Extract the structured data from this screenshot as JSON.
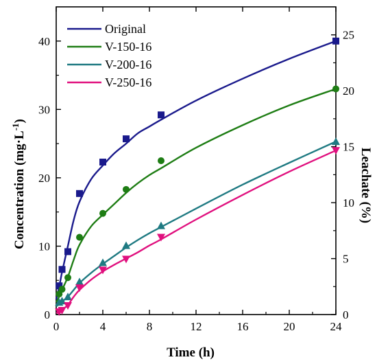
{
  "chart_data": {
    "type": "line",
    "xlabel": "Time (h)",
    "ylabel": "Concentration (mg·L",
    "ylabel_sup": "-1",
    "ylabel_tail": ")",
    "y2label": "Leachate (%)",
    "xlim": [
      0,
      24
    ],
    "ylim": [
      0,
      45
    ],
    "y2lim": [
      0,
      27.5
    ],
    "x_ticks": [
      0,
      4,
      8,
      12,
      16,
      20,
      24
    ],
    "x_tick_labels": [
      "0",
      "4",
      "8",
      "12",
      "16",
      "20",
      "24"
    ],
    "y_ticks": [
      0,
      10,
      20,
      30,
      40
    ],
    "y_tick_labels": [
      "0",
      "10",
      "20",
      "30",
      "40"
    ],
    "y2_ticks": [
      0,
      5,
      10,
      15,
      20,
      25
    ],
    "y2_tick_labels": [
      "0",
      "5",
      "10",
      "15",
      "20",
      "25"
    ],
    "grid": false,
    "legend_position": "top-left",
    "series": [
      {
        "name": "Original",
        "color": "#1a1a8c",
        "marker": "square",
        "x": [
          0.25,
          0.5,
          1,
          2,
          4,
          6,
          9,
          24
        ],
        "y": [
          4.2,
          6.6,
          9.2,
          17.7,
          22.3,
          25.7,
          29.2,
          40.0
        ],
        "fit": [
          [
            0,
            2.2
          ],
          [
            0.25,
            4.0
          ],
          [
            0.5,
            6.2
          ],
          [
            1,
            10.0
          ],
          [
            1.5,
            13.8
          ],
          [
            2,
            16.5
          ],
          [
            3,
            19.8
          ],
          [
            4,
            21.8
          ],
          [
            5,
            23.6
          ],
          [
            6,
            25.0
          ],
          [
            7,
            26.5
          ],
          [
            8,
            27.5
          ],
          [
            9,
            28.5
          ],
          [
            12,
            31.3
          ],
          [
            16,
            34.5
          ],
          [
            20,
            37.4
          ],
          [
            24,
            40.0
          ]
        ]
      },
      {
        "name": "V-150-16",
        "color": "#1e7d14",
        "marker": "circle",
        "x": [
          0.25,
          0.5,
          1,
          2,
          4,
          6,
          9,
          24
        ],
        "y": [
          3.0,
          3.7,
          5.4,
          11.3,
          14.8,
          18.3,
          22.5,
          33.0
        ],
        "fit": [
          [
            0,
            1.8
          ],
          [
            0.25,
            2.6
          ],
          [
            0.5,
            3.6
          ],
          [
            1,
            5.5
          ],
          [
            1.5,
            8.0
          ],
          [
            2,
            10.2
          ],
          [
            3,
            12.9
          ],
          [
            4,
            14.6
          ],
          [
            5,
            16.2
          ],
          [
            6,
            17.8
          ],
          [
            7,
            19.2
          ],
          [
            8,
            20.4
          ],
          [
            9,
            21.4
          ],
          [
            12,
            24.4
          ],
          [
            16,
            27.7
          ],
          [
            20,
            30.6
          ],
          [
            24,
            33.0
          ]
        ]
      },
      {
        "name": "V-200-16",
        "color": "#1f7a82",
        "marker": "triangle-up",
        "x": [
          0.25,
          0.5,
          1,
          2,
          4,
          6,
          9,
          24
        ],
        "y": [
          1.8,
          2.0,
          2.6,
          4.8,
          7.6,
          10.1,
          13.0,
          25.3
        ],
        "fit": [
          [
            0,
            1.2
          ],
          [
            0.25,
            1.5
          ],
          [
            0.5,
            1.9
          ],
          [
            1,
            2.6
          ],
          [
            1.5,
            3.6
          ],
          [
            2,
            4.6
          ],
          [
            3,
            6.1
          ],
          [
            4,
            7.4
          ],
          [
            5,
            8.6
          ],
          [
            6,
            9.8
          ],
          [
            7,
            10.9
          ],
          [
            8,
            11.9
          ],
          [
            9,
            12.8
          ],
          [
            12,
            15.5
          ],
          [
            16,
            19.0
          ],
          [
            20,
            22.2
          ],
          [
            24,
            25.3
          ]
        ]
      },
      {
        "name": "V-250-16",
        "color": "#e0107e",
        "marker": "triangle-down",
        "x": [
          0.25,
          0.5,
          1,
          2,
          4,
          6,
          9,
          24
        ],
        "y": [
          0.4,
          0.6,
          1.3,
          3.9,
          6.5,
          8.1,
          11.3,
          24.0
        ],
        "fit": [
          [
            0,
            0.2
          ],
          [
            0.25,
            0.4
          ],
          [
            0.5,
            0.7
          ],
          [
            1,
            1.4
          ],
          [
            1.5,
            2.6
          ],
          [
            2,
            3.6
          ],
          [
            3,
            5.1
          ],
          [
            4,
            6.3
          ],
          [
            5,
            7.3
          ],
          [
            6,
            8.2
          ],
          [
            7,
            9.1
          ],
          [
            8,
            10.1
          ],
          [
            9,
            11.0
          ],
          [
            12,
            13.9
          ],
          [
            16,
            17.5
          ],
          [
            20,
            20.9
          ],
          [
            24,
            24.0
          ]
        ]
      }
    ]
  }
}
